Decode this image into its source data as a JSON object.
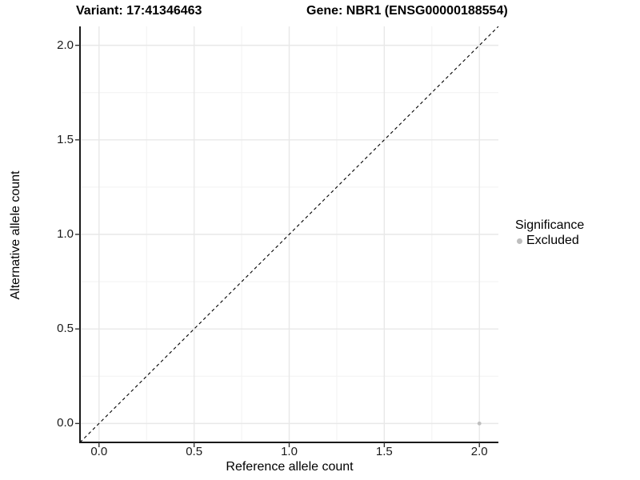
{
  "header": {
    "variant_title": "Variant: 17:41346463",
    "gene_title": "Gene: NBR1 (ENSG00000188554)"
  },
  "chart_data": {
    "type": "scatter",
    "title": "Variant: 17:41346463    Gene: NBR1 (ENSG00000188554)",
    "xlabel": "Reference allele count",
    "ylabel": "Alternative allele count",
    "xlim": [
      -0.1,
      2.1
    ],
    "ylim": [
      -0.1,
      2.1
    ],
    "x_ticks": [
      0.0,
      0.5,
      1.0,
      1.5,
      2.0
    ],
    "y_ticks": [
      0.0,
      0.5,
      1.0,
      1.5,
      2.0
    ],
    "x_tick_labels": [
      "0.0",
      "0.5",
      "1.0",
      "1.5",
      "2.0"
    ],
    "y_tick_labels": [
      "0.0",
      "0.5",
      "1.0",
      "1.5",
      "2.0"
    ],
    "x_minor_ticks": [
      0.25,
      0.75,
      1.25,
      1.75
    ],
    "y_minor_ticks": [
      0.25,
      0.75,
      1.25,
      1.75
    ],
    "grid": true,
    "series": [
      {
        "name": "Excluded",
        "color": "#bebebe",
        "points": [
          {
            "x": 2.0,
            "y": 0.0
          }
        ]
      }
    ],
    "reference_line": {
      "description": "identity line y = x",
      "from": [
        -0.1,
        -0.1
      ],
      "to": [
        2.1,
        2.1
      ],
      "style": "dashed",
      "color": "#000000"
    },
    "legend": {
      "title": "Significance",
      "position": "right",
      "items": [
        {
          "label": "Excluded",
          "color": "#bebebe"
        }
      ]
    }
  },
  "colors": {
    "grid_major": "#e8e8e8",
    "grid_minor": "#f2f2f2",
    "axis_line": "#1a1a1a",
    "tick_mark": "#333333",
    "point": "#bebebe"
  }
}
